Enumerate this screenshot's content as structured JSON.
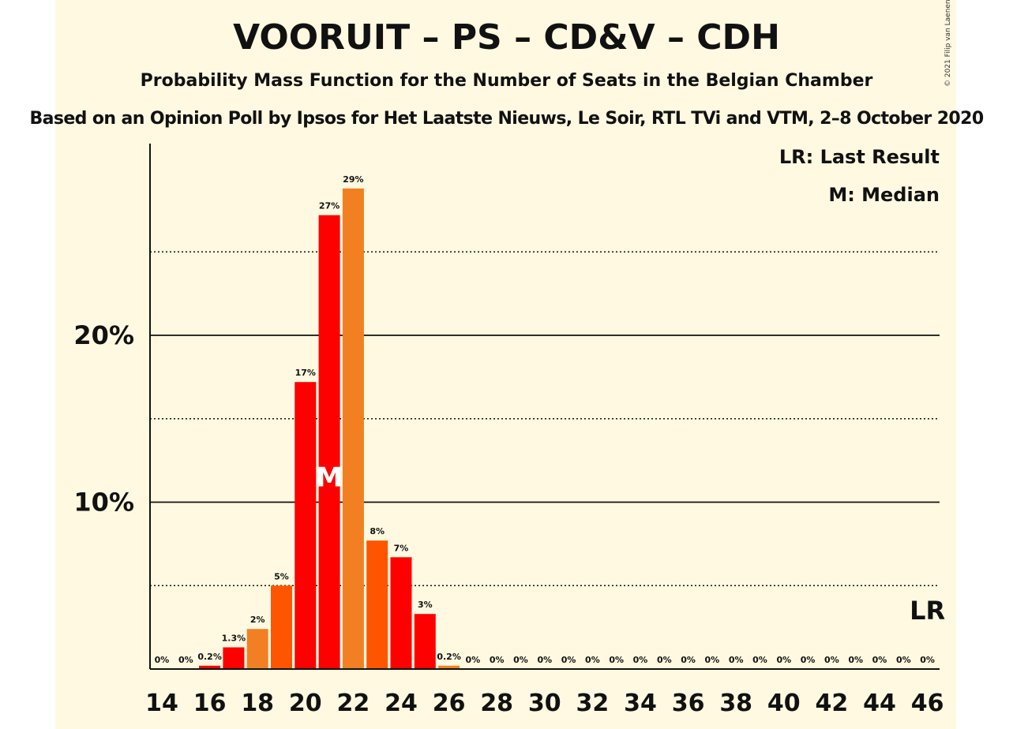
{
  "header": {
    "title": "VOORUIT – PS – CD&V – CDH",
    "subtitle": "Probability Mass Function for the Number of Seats in the Belgian Chamber",
    "source": "Based on an Opinion Poll by Ipsos for Het Laatste Nieuws, Le Soir, RTL TVi and VTM, 2–8 October 2020",
    "copyright": "© 2021 Filip van Laenen"
  },
  "legend": {
    "last_result": "LR: Last Result",
    "median": "M: Median"
  },
  "chart_data": {
    "type": "bar",
    "title": "VOORUIT – PS – CD&V – CDH",
    "xlabel": "",
    "ylabel": "",
    "x": [
      14,
      15,
      16,
      17,
      18,
      19,
      20,
      21,
      22,
      23,
      24,
      25,
      26,
      27,
      28,
      29,
      30,
      31,
      32,
      33,
      34,
      35,
      36,
      37,
      38,
      39,
      40,
      41,
      42,
      43,
      44,
      45,
      46
    ],
    "values": [
      0,
      0,
      0.2,
      1.3,
      2.4,
      5.0,
      17.2,
      27.2,
      28.8,
      7.7,
      6.7,
      3.3,
      0.2,
      0,
      0,
      0,
      0,
      0,
      0,
      0,
      0,
      0,
      0,
      0,
      0,
      0,
      0,
      0,
      0,
      0,
      0,
      0,
      0
    ],
    "value_labels": [
      "0%",
      "0%",
      "0.2%",
      "1.3%",
      "2%",
      "5%",
      "17%",
      "27%",
      "29%",
      "8%",
      "7%",
      "3%",
      "0.2%",
      "0%",
      "0%",
      "0%",
      "0%",
      "0%",
      "0%",
      "0%",
      "0%",
      "0%",
      "0%",
      "0%",
      "0%",
      "0%",
      "0%",
      "0%",
      "0%",
      "0%",
      "0%",
      "0%",
      "0%"
    ],
    "bar_colors": [
      "#ff0000",
      "#ff5500",
      "#ff0000",
      "#ff0000",
      "#f28022",
      "#ff5500",
      "#ff0000",
      "#ff0000",
      "#f28022",
      "#ff5500",
      "#ff0000",
      "#ff0000",
      "#f28022",
      "#ff5500",
      "#ff0000",
      "#ff0000",
      "#f28022",
      "#ff5500",
      "#ff0000",
      "#ff0000",
      "#f28022",
      "#ff5500",
      "#ff0000",
      "#ff0000",
      "#f28022",
      "#ff5500",
      "#ff0000",
      "#ff0000",
      "#f28022",
      "#ff5500",
      "#ff0000",
      "#ff0000",
      "#f28022"
    ],
    "x_tick_labels": [
      "14",
      "16",
      "18",
      "20",
      "22",
      "24",
      "26",
      "28",
      "30",
      "32",
      "34",
      "36",
      "38",
      "40",
      "42",
      "44",
      "46"
    ],
    "y_tick_values": [
      10,
      20
    ],
    "y_tick_labels": [
      "10%",
      "20%"
    ],
    "y_dotted_lines": [
      5,
      15,
      25
    ],
    "ylim": [
      0,
      31.3
    ],
    "median_seat": 21,
    "median_marker": "M",
    "last_result_seat": 46,
    "last_result_marker": "LR",
    "grid": true,
    "legend_position": "top-right"
  }
}
